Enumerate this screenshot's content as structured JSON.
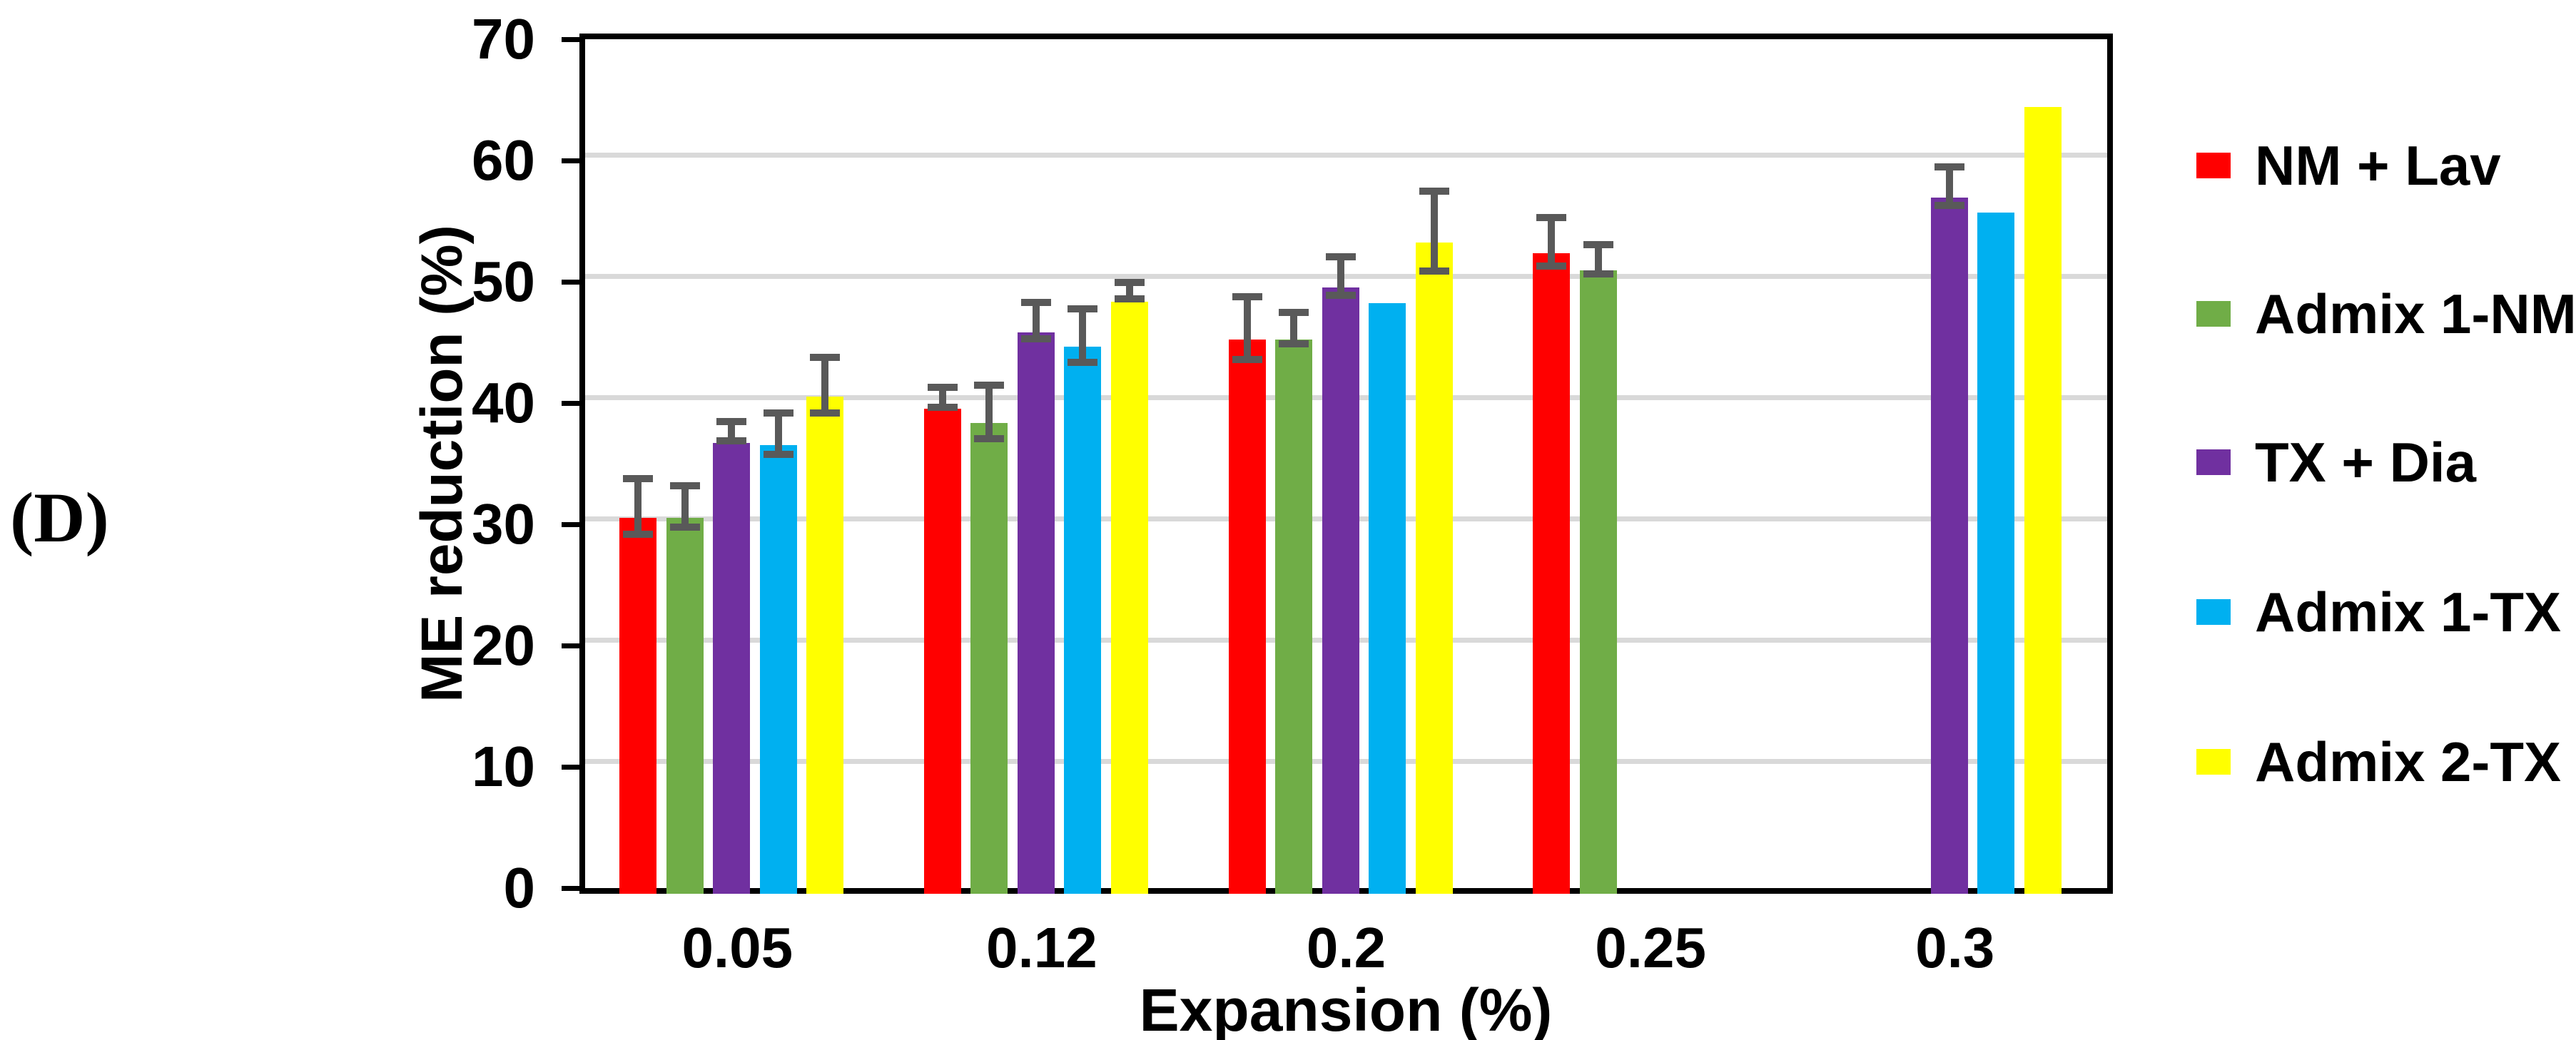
{
  "panel_label": "(D)",
  "chart_data": {
    "type": "bar",
    "title": "",
    "xlabel": "Expansion (%)",
    "ylabel": "ME reduction (%)",
    "ylim": [
      0,
      70
    ],
    "ytick_step": 10,
    "yticklabels": [
      "0",
      "10",
      "20",
      "30",
      "40",
      "50",
      "60",
      "70"
    ],
    "categories": [
      "0.05",
      "0.12",
      "0.2",
      "0.25",
      "0.3"
    ],
    "series": [
      {
        "name": "NM + Lav",
        "color": "#FF0000",
        "values": [
          31.0,
          40.0,
          45.7,
          52.8,
          null
        ],
        "errors": [
          2.3,
          0.8,
          2.6,
          2.0,
          null
        ]
      },
      {
        "name": "Admix 1-NM",
        "color": "#70AD47",
        "values": [
          31.0,
          38.8,
          45.7,
          51.4,
          null
        ],
        "errors": [
          1.7,
          2.2,
          1.3,
          1.2,
          null
        ]
      },
      {
        "name": "TX + Dia",
        "color": "#7030A0",
        "values": [
          37.2,
          46.3,
          50.0,
          null,
          57.4
        ],
        "errors": [
          0.8,
          1.5,
          1.6,
          null,
          1.6
        ]
      },
      {
        "name": "Admix 1-TX",
        "color": "#00B0F0",
        "values": [
          37.0,
          45.1,
          48.7,
          null,
          56.2
        ],
        "errors": [
          1.7,
          2.2,
          0,
          null,
          0
        ]
      },
      {
        "name": "Admix 2-TX",
        "color": "#FFFF00",
        "values": [
          41.0,
          48.8,
          53.7,
          null,
          64.9
        ],
        "errors": [
          2.3,
          0.7,
          3.3,
          null,
          0
        ]
      }
    ],
    "legend_position": "right",
    "grid": true,
    "gridline_color": "#D9D9D9",
    "error_bar_color": "#595959",
    "axis_color": "#000000"
  }
}
